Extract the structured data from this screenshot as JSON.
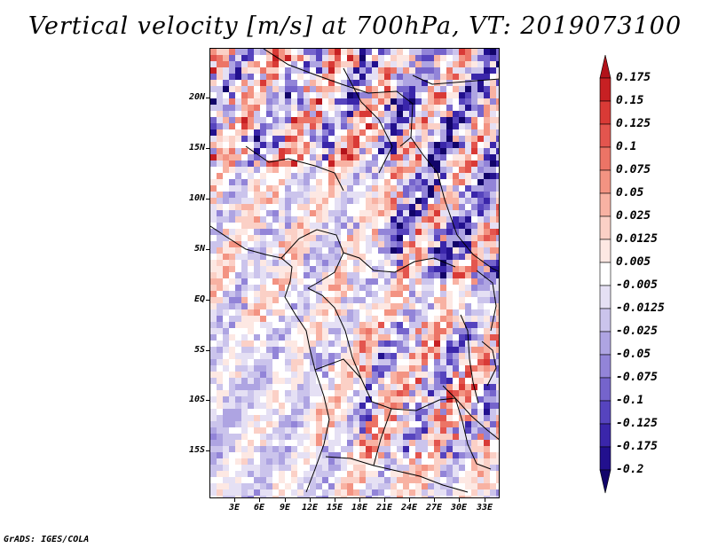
{
  "title": "Vertical velocity [m/s] at 700hPa, VT: 2019073100",
  "latitude_labels": [
    "20N",
    "15N",
    "10N",
    "5N",
    "EQ",
    "5S",
    "10S",
    "15S"
  ],
  "longitude_labels": [
    "3E",
    "6E",
    "9E",
    "12E",
    "15E",
    "18E",
    "21E",
    "24E",
    "27E",
    "30E",
    "33E"
  ],
  "colorbar": {
    "levels": [
      "0.175",
      "0.15",
      "0.125",
      "0.1",
      "0.075",
      "0.05",
      "0.025",
      "0.0125",
      "0.005",
      "-0.005",
      "-0.0125",
      "-0.025",
      "-0.05",
      "-0.075",
      "-0.1",
      "-0.125",
      "-0.175",
      "-0.2"
    ],
    "colors": [
      "#b2121a",
      "#c72023",
      "#d93a36",
      "#e3554e",
      "#ec7466",
      "#f39382",
      "#f8b2a3",
      "#fbd0c6",
      "#fde8e3",
      "#ffffff",
      "#e5e0f4",
      "#cbc4ec",
      "#aea4e2",
      "#9284d8",
      "#7564cc",
      "#5644be",
      "#3a26aa",
      "#22108e",
      "#12046a"
    ]
  },
  "footer": "GrADS: IGES/COLA"
}
